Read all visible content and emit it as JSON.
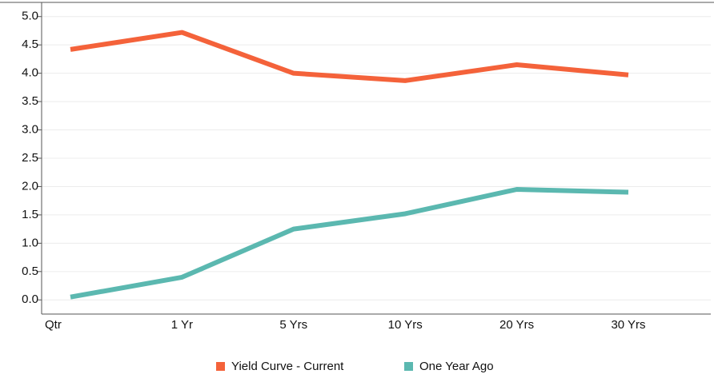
{
  "chart_data": {
    "type": "line",
    "categories": [
      "Qtr",
      "1 Yr",
      "5 Yrs",
      "10 Yrs",
      "20 Yrs",
      "30 Yrs"
    ],
    "series": [
      {
        "name": "Yield Curve - Current",
        "color": "#f4623a",
        "values": [
          4.42,
          4.72,
          4.0,
          3.87,
          4.15,
          3.97
        ]
      },
      {
        "name": "One Year Ago",
        "color": "#5bb8b0",
        "values": [
          0.05,
          0.4,
          1.25,
          1.52,
          1.95,
          1.9
        ]
      }
    ],
    "ylim": [
      -0.25,
      5.25
    ],
    "yticks": [
      {
        "value": 0,
        "label": "0.0"
      },
      {
        "value": 0.5,
        "label": "0.5"
      },
      {
        "value": 1,
        "label": "1.0"
      },
      {
        "value": 1.5,
        "label": "1.5"
      },
      {
        "value": 2,
        "label": "2.0"
      },
      {
        "value": 2.5,
        "label": "2.5"
      },
      {
        "value": 3,
        "label": "3.0"
      },
      {
        "value": 3.5,
        "label": "3.5"
      },
      {
        "value": 4,
        "label": "4.0"
      },
      {
        "value": 4.5,
        "label": "4.5"
      },
      {
        "value": 5,
        "label": "5.0"
      }
    ],
    "grid": true
  }
}
